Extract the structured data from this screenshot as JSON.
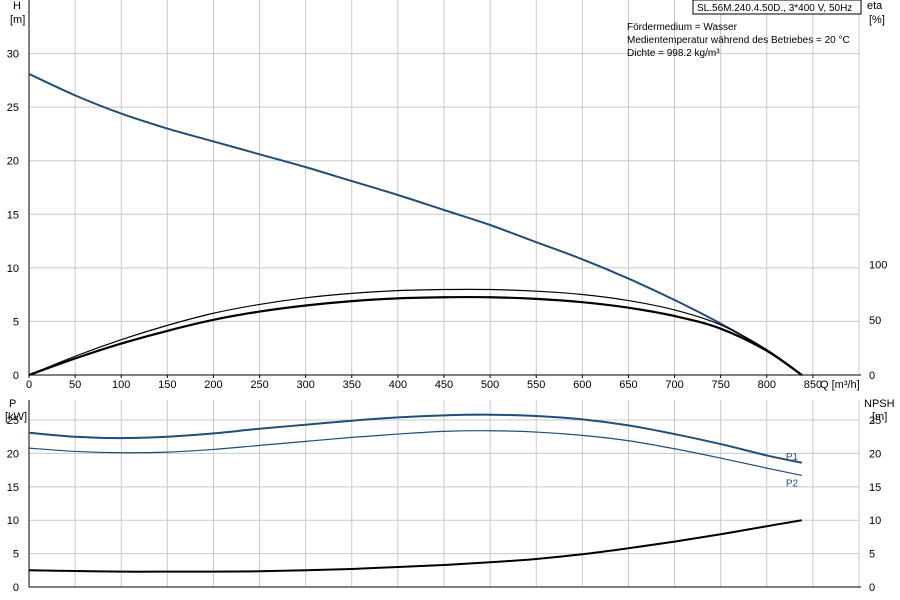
{
  "title_box": "SL.56M.240.4.50D., 3*400 V, 50Hz",
  "info_lines": [
    "Fördermedium = Wasser",
    "Medientemperatur während des Betriebes = 20 °C",
    "Dichte = 998.2 kg/m³"
  ],
  "colors": {
    "blue": "#1f4e79",
    "black": "#000000",
    "grid": "#c8c8c8"
  },
  "chart_data": [
    {
      "type": "line",
      "panel": "top",
      "xlabel": "Q [m³/h]",
      "y_left_label": [
        "H",
        "[m]"
      ],
      "y_right_label": [
        "eta",
        "[%]"
      ],
      "xlim": [
        0,
        900
      ],
      "ylim_left": [
        0,
        35
      ],
      "ylim_right": [
        0,
        340
      ],
      "x_ticks": [
        0,
        50,
        100,
        150,
        200,
        250,
        300,
        350,
        400,
        450,
        500,
        550,
        600,
        650,
        700,
        750,
        800,
        850
      ],
      "y_left_ticks": [
        0,
        5,
        10,
        15,
        20,
        25,
        30
      ],
      "y_right_ticks": [
        0,
        50,
        100
      ],
      "grid": true,
      "series": [
        {
          "key": "H",
          "axis": "left",
          "color": "#1f4e79",
          "x": [
            0,
            50,
            100,
            150,
            200,
            250,
            300,
            350,
            400,
            450,
            500,
            550,
            600,
            650,
            700,
            750,
            800,
            838
          ],
          "y": [
            28.1,
            26.1,
            24.4,
            23.0,
            21.8,
            20.6,
            19.4,
            18.1,
            16.8,
            15.4,
            14.0,
            12.4,
            10.8,
            9.0,
            7.0,
            4.8,
            2.3,
            0
          ]
        },
        {
          "key": "eta_thin",
          "axis": "right",
          "color": "#000000",
          "x": [
            0,
            50,
            100,
            150,
            200,
            250,
            300,
            350,
            400,
            450,
            500,
            550,
            600,
            650,
            700,
            750,
            800,
            838
          ],
          "y": [
            0,
            17,
            32,
            45,
            56,
            64,
            70,
            74,
            76.5,
            77.5,
            77.5,
            76,
            73,
            67.5,
            59,
            45.5,
            23,
            0
          ]
        },
        {
          "key": "eta_thick",
          "axis": "right",
          "color": "#000000",
          "x": [
            0,
            50,
            100,
            150,
            200,
            250,
            300,
            350,
            400,
            450,
            500,
            550,
            600,
            650,
            700,
            750,
            800,
            838
          ],
          "y": [
            0,
            15,
            28.5,
            40,
            50,
            57.5,
            63,
            67,
            69.5,
            70.5,
            70.5,
            69,
            66,
            61,
            53.5,
            42,
            22,
            0
          ]
        }
      ]
    },
    {
      "type": "line",
      "panel": "bottom",
      "xlim": [
        0,
        900
      ],
      "y_left_label": [
        "P",
        "[kW]"
      ],
      "y_right_label": [
        "NPSH",
        "[m]"
      ],
      "ylim_left": [
        0,
        28
      ],
      "ylim_right": [
        0,
        28
      ],
      "y_left_ticks": [
        0,
        5,
        10,
        15,
        20,
        25
      ],
      "y_right_ticks": [
        0,
        5,
        10,
        15,
        20,
        25
      ],
      "grid": true,
      "series": [
        {
          "name": "P1",
          "axis": "left",
          "color": "#1f4e79",
          "x": [
            0,
            50,
            100,
            150,
            200,
            250,
            300,
            350,
            400,
            450,
            500,
            550,
            600,
            650,
            700,
            750,
            800,
            838
          ],
          "y": [
            23.1,
            22.5,
            22.3,
            22.5,
            23.0,
            23.7,
            24.3,
            24.9,
            25.4,
            25.7,
            25.8,
            25.6,
            25.1,
            24.2,
            22.9,
            21.4,
            19.7,
            18.6
          ]
        },
        {
          "name": "P2",
          "axis": "left",
          "color": "#1f4e79",
          "x": [
            0,
            50,
            100,
            150,
            200,
            250,
            300,
            350,
            400,
            450,
            500,
            550,
            600,
            650,
            700,
            750,
            800,
            838
          ],
          "y": [
            20.8,
            20.3,
            20.1,
            20.2,
            20.6,
            21.2,
            21.8,
            22.4,
            22.9,
            23.3,
            23.4,
            23.2,
            22.7,
            21.9,
            20.7,
            19.3,
            17.8,
            16.7
          ]
        },
        {
          "key": "NPSH",
          "axis": "right",
          "color": "#000000",
          "x": [
            0,
            50,
            100,
            150,
            200,
            250,
            300,
            350,
            400,
            450,
            500,
            550,
            600,
            650,
            700,
            750,
            800,
            838
          ],
          "y": [
            2.5,
            2.4,
            2.3,
            2.3,
            2.3,
            2.35,
            2.5,
            2.7,
            3.0,
            3.3,
            3.7,
            4.2,
            4.9,
            5.8,
            6.8,
            7.9,
            9.1,
            10.0
          ]
        }
      ]
    }
  ]
}
